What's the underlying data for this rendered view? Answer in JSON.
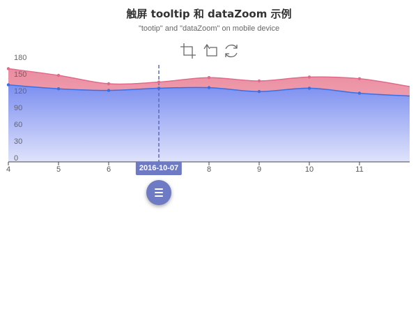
{
  "chart_data": {
    "type": "area",
    "title": "触屏 tooltip 和 dataZoom 示例",
    "subtitle": "\"tootip\" and \"dataZoom\" on mobile device",
    "x": [
      4,
      5,
      6,
      7,
      8,
      9,
      10,
      11,
      12
    ],
    "xticks": [
      "4",
      "5",
      "6",
      "",
      "8",
      "9",
      "10",
      "11"
    ],
    "xrange": [
      4,
      12
    ],
    "ylim": [
      0,
      180
    ],
    "yticks": [
      0,
      30,
      60,
      90,
      120,
      150,
      180
    ],
    "grid": false,
    "series": [
      {
        "values": [
          167,
          155,
          140,
          143,
          151,
          145,
          152,
          149,
          135
        ],
        "color": "#e06a8a"
      },
      {
        "values": [
          138,
          131,
          128,
          132,
          133,
          126,
          132,
          123,
          118
        ],
        "color": "#3b6fe0"
      }
    ],
    "tooltip": {
      "x": 7,
      "label": "2016-10-07"
    }
  },
  "toolbox": {
    "icons": [
      "zoom-area-icon",
      "zoom-reset-icon",
      "restore-icon"
    ]
  }
}
